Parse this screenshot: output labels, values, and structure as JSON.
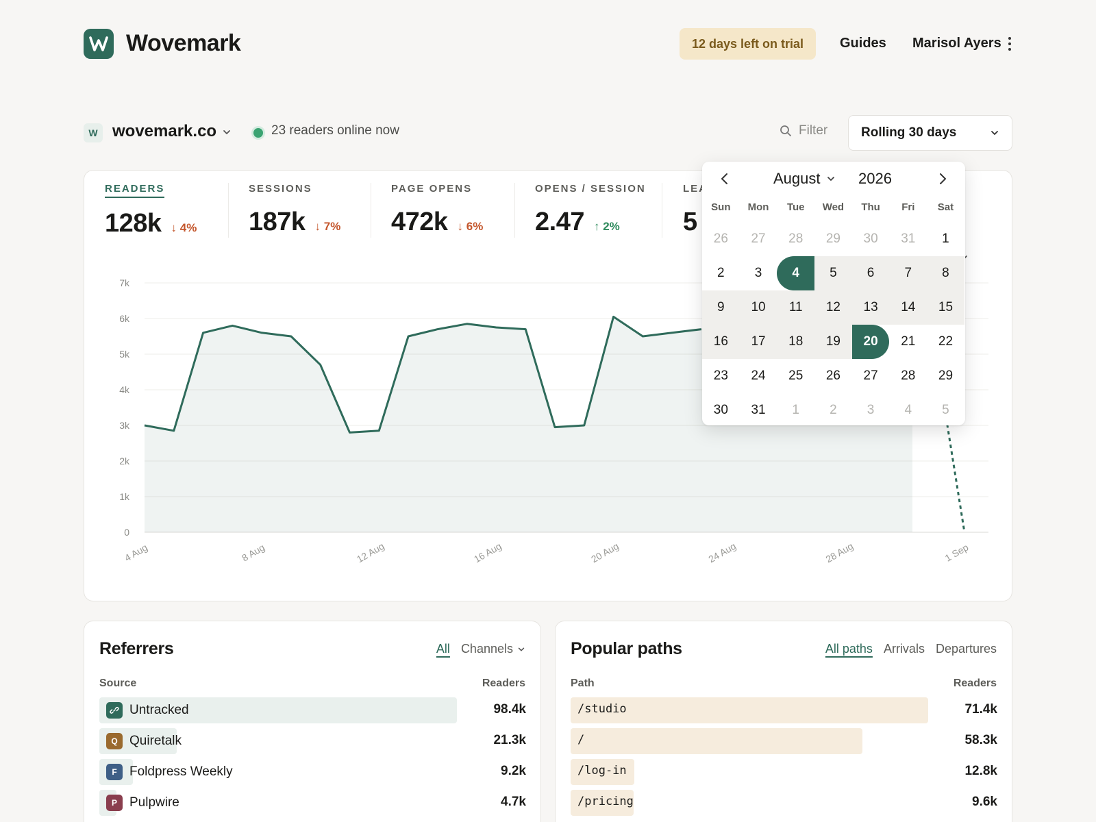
{
  "header": {
    "brand": "Wovemark",
    "trial_badge": "12 days left on trial",
    "guides": "Guides",
    "user_name": "Marisol Ayers"
  },
  "sitebar": {
    "favicon_letter": "W",
    "site_name": "wovemark.co",
    "online_text": "23 readers online now",
    "filter_label": "Filter",
    "range_label": "Rolling 30 days"
  },
  "metrics": [
    {
      "label": "READERS",
      "value": "128k",
      "delta": "4%",
      "direction": "down",
      "active": true
    },
    {
      "label": "SESSIONS",
      "value": "187k",
      "delta": "7%",
      "direction": "down",
      "active": false
    },
    {
      "label": "PAGE OPENS",
      "value": "472k",
      "delta": "6%",
      "direction": "down",
      "active": false
    },
    {
      "label": "OPENS / SESSION",
      "value": "2.47",
      "delta": "2%",
      "direction": "up",
      "active": false
    },
    {
      "label": "LEA",
      "value": "5",
      "delta": "",
      "direction": "",
      "active": false
    }
  ],
  "granularity_label": "lly",
  "chart_data": {
    "type": "area",
    "x": [
      "4 Aug",
      "5 Aug",
      "6 Aug",
      "7 Aug",
      "8 Aug",
      "9 Aug",
      "10 Aug",
      "11 Aug",
      "12 Aug",
      "13 Aug",
      "14 Aug",
      "15 Aug",
      "16 Aug",
      "17 Aug",
      "18 Aug",
      "19 Aug",
      "20 Aug",
      "21 Aug",
      "22 Aug",
      "23 Aug"
    ],
    "series": [
      {
        "values": [
          3000,
          2850,
          5600,
          5800,
          5600,
          5500,
          4700,
          2800,
          2850,
          5500,
          5700,
          5850,
          5750,
          5700,
          2950,
          3000,
          6050,
          5500,
          5600,
          5700
        ]
      }
    ],
    "incomplete_tail": {
      "from_value": 3600,
      "to_x": "1 Sep",
      "to_value": 0
    },
    "x_tick_labels": [
      "4 Aug",
      "8 Aug",
      "12 Aug",
      "16 Aug",
      "20 Aug",
      "24 Aug",
      "28 Aug",
      "1 Sep"
    ],
    "y_tick_labels": [
      "0",
      "1k",
      "2k",
      "3k",
      "4k",
      "5k",
      "6k",
      "7k"
    ],
    "ylim": [
      0,
      7000
    ],
    "grid": true,
    "line_color": "#2f6b5b"
  },
  "calendar": {
    "month": "August",
    "year": "2026",
    "weekdays": [
      "Sun",
      "Mon",
      "Tue",
      "Wed",
      "Thu",
      "Fri",
      "Sat"
    ],
    "days": [
      {
        "d": "26",
        "muted": true
      },
      {
        "d": "27",
        "muted": true
      },
      {
        "d": "28",
        "muted": true
      },
      {
        "d": "29",
        "muted": true
      },
      {
        "d": "30",
        "muted": true
      },
      {
        "d": "31",
        "muted": true
      },
      {
        "d": "1"
      },
      {
        "d": "2"
      },
      {
        "d": "3"
      },
      {
        "d": "4",
        "state": "start"
      },
      {
        "d": "5",
        "state": "inrange"
      },
      {
        "d": "6",
        "state": "inrange"
      },
      {
        "d": "7",
        "state": "inrange"
      },
      {
        "d": "8",
        "state": "inrange"
      },
      {
        "d": "9",
        "state": "inrange"
      },
      {
        "d": "10",
        "state": "inrange"
      },
      {
        "d": "11",
        "state": "inrange"
      },
      {
        "d": "12",
        "state": "inrange"
      },
      {
        "d": "13",
        "state": "inrange"
      },
      {
        "d": "14",
        "state": "inrange"
      },
      {
        "d": "15",
        "state": "inrange"
      },
      {
        "d": "16",
        "state": "inrange"
      },
      {
        "d": "17",
        "state": "inrange"
      },
      {
        "d": "18",
        "state": "inrange"
      },
      {
        "d": "19",
        "state": "inrange"
      },
      {
        "d": "20",
        "state": "end"
      },
      {
        "d": "21"
      },
      {
        "d": "22"
      },
      {
        "d": "23"
      },
      {
        "d": "24"
      },
      {
        "d": "25"
      },
      {
        "d": "26"
      },
      {
        "d": "27"
      },
      {
        "d": "28"
      },
      {
        "d": "29"
      },
      {
        "d": "30"
      },
      {
        "d": "31"
      },
      {
        "d": "1",
        "muted": true
      },
      {
        "d": "2",
        "muted": true
      },
      {
        "d": "3",
        "muted": true
      },
      {
        "d": "4",
        "muted": true
      },
      {
        "d": "5",
        "muted": true
      }
    ]
  },
  "referrers": {
    "title": "Referrers",
    "tabs": [
      "All",
      "Channels"
    ],
    "col_source": "Source",
    "col_readers": "Readers",
    "rows": [
      {
        "icon_letter": "",
        "icon_name": "link-icon",
        "icon_color": "#2f6b5b",
        "name": "Untracked",
        "value": "98.4k",
        "share": 1.0
      },
      {
        "icon_letter": "Q",
        "icon_name": "quiretalk-icon",
        "icon_color": "#9a6a2e",
        "name": "Quiretalk",
        "value": "21.3k",
        "share": 0.216
      },
      {
        "icon_letter": "F",
        "icon_name": "foldpress-icon",
        "icon_color": "#3e5f86",
        "name": "Foldpress Weekly",
        "value": "9.2k",
        "share": 0.093
      },
      {
        "icon_letter": "P",
        "icon_name": "pulpwire-icon",
        "icon_color": "#8a3e4e",
        "name": "Pulpwire",
        "value": "4.7k",
        "share": 0.048
      }
    ]
  },
  "paths": {
    "title": "Popular paths",
    "tabs": [
      "All paths",
      "Arrivals",
      "Departures"
    ],
    "col_path": "Path",
    "col_readers": "Readers",
    "rows": [
      {
        "name": "/studio",
        "value": "71.4k",
        "share": 1.0
      },
      {
        "name": "/",
        "value": "58.3k",
        "share": 0.817
      },
      {
        "name": "/log-in",
        "value": "12.8k",
        "share": 0.179
      },
      {
        "name": "/pricing",
        "value": "9.6k",
        "share": 0.134
      }
    ]
  }
}
